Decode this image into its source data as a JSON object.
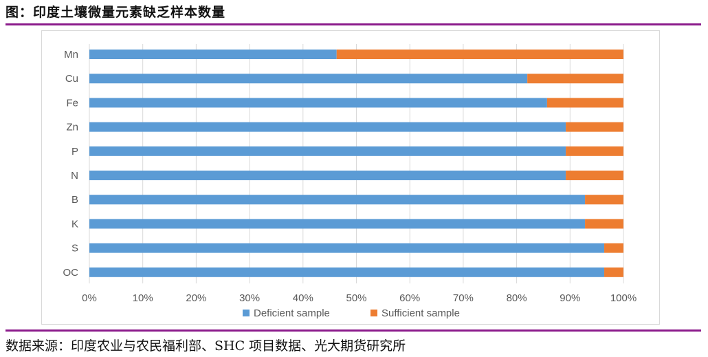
{
  "header": {
    "title": "图：印度土壤微量元素缺乏样本数量"
  },
  "footer": {
    "source": "数据来源：印度农业与农民福利部、SHC 项目数据、光大期货研究所"
  },
  "chart_data": {
    "type": "bar",
    "orientation": "horizontal",
    "stacked": true,
    "normalized_percent": true,
    "categories": [
      "Mn",
      "Cu",
      "Fe",
      "Zn",
      "P",
      "N",
      "B",
      "K",
      "S",
      "OC"
    ],
    "series": [
      {
        "name": "Deficient sample",
        "color": "#5b9bd5",
        "values": [
          46.3,
          82.0,
          85.7,
          89.2,
          89.2,
          89.2,
          92.8,
          92.8,
          96.4,
          96.4
        ]
      },
      {
        "name": "Sufficient sample",
        "color": "#ed7d31",
        "values": [
          53.7,
          18.0,
          14.3,
          10.8,
          10.8,
          10.8,
          7.2,
          7.2,
          3.6,
          3.6
        ]
      }
    ],
    "xlim": [
      0,
      100
    ],
    "x_ticks": [
      "0%",
      "10%",
      "20%",
      "30%",
      "40%",
      "50%",
      "60%",
      "70%",
      "80%",
      "90%",
      "100%"
    ],
    "grid": "vertical",
    "legend": "bottom"
  }
}
